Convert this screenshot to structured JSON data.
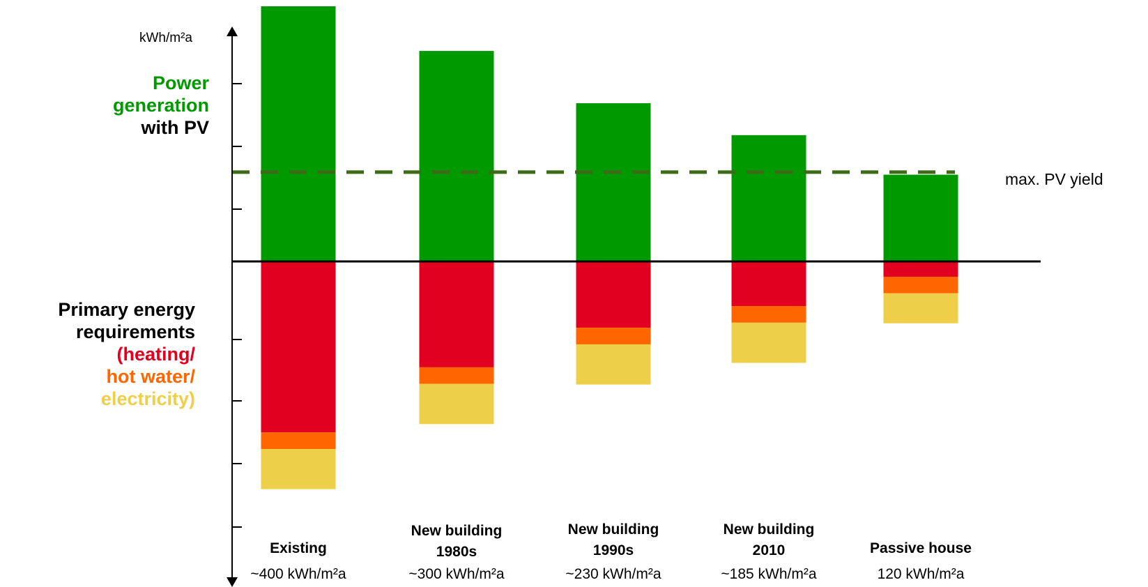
{
  "chart_data": {
    "type": "bar",
    "categories": [
      {
        "name_lines": [
          "Existing"
        ],
        "value_label": "~400 kWh/m²a"
      },
      {
        "name_lines": [
          "New building",
          "1980s"
        ],
        "value_label": "~300 kWh/m²a"
      },
      {
        "name_lines": [
          "New building",
          "1990s"
        ],
        "value_label": "~230 kWh/m²a"
      },
      {
        "name_lines": [
          "New building",
          "2010"
        ],
        "value_label": "~185 kWh/m²a"
      },
      {
        "name_lines": [
          "Passive house"
        ],
        "value_label": "120 kWh/m²a"
      }
    ],
    "unit": "kWh/m²a",
    "series": [
      {
        "key": "pv",
        "values": [
          400,
          330,
          248,
          198,
          136
        ]
      },
      {
        "key": "heating",
        "values": [
          -268,
          -166,
          -104,
          -70,
          -24
        ]
      },
      {
        "key": "hot_water",
        "values": [
          -26,
          -26,
          -26,
          -26,
          -26
        ]
      },
      {
        "key": "electricity",
        "values": [
          -63,
          -63,
          -63,
          -63,
          -47
        ]
      }
    ],
    "max_pv_yield": 140,
    "max_pv_yield_label": "max. PV yield",
    "ylim": [
      -450,
      390
    ],
    "grid": false,
    "colors": {
      "pv": "#009900",
      "heating": "#e1001f",
      "hot_water": "#ff6600",
      "electricity": "#eecf4a",
      "pv_line": "#3d6b18",
      "axis": "#000000"
    }
  },
  "labels": {
    "power_line1": "Power",
    "power_line2": "generation",
    "power_line3": "with PV",
    "primary_line1": "Primary energy",
    "primary_line2": "requirements",
    "heating": "(heating/",
    "hot_water": "hot water/",
    "electricity": "electricity)"
  }
}
